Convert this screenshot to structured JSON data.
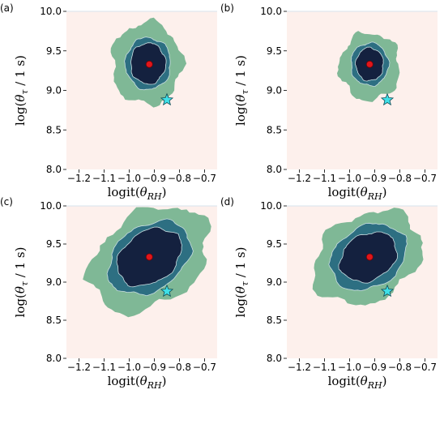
{
  "colors": {
    "background": "#fdf0ec",
    "level_outer": "#7fb896",
    "level_mid": "#2d6f82",
    "level_inner": "#14213f",
    "edge": "#d7e3ee",
    "posterior_mean": "#e0161b",
    "true_value": "#3fe0e8"
  },
  "icons": {
    "true_value_marker": "star-icon",
    "posterior_mean_marker": "circle-dot-icon"
  },
  "chart_data": [
    {
      "type": "contour",
      "panel_label": "(a)",
      "xlabel_main": "logit(",
      "xlabel_sub": "RH",
      "ylabel_main": "log(",
      "ylabel_sub": "τ",
      "ylabel_tail": " / 1 s)",
      "xlim": [
        -1.25,
        -0.65
      ],
      "ylim": [
        8.0,
        10.0
      ],
      "grid": false,
      "xticks": [
        "−1.2",
        "−1.1",
        "−1.0",
        "−0.9",
        "−0.8",
        "−0.7"
      ],
      "yticks": [
        "8.0",
        "8.5",
        "9.0",
        "9.5",
        "10.0"
      ],
      "posterior_mean": {
        "x": -0.92,
        "y": 9.33
      },
      "true_value": {
        "x": -0.85,
        "y": 8.88
      },
      "contours": [
        {
          "level": "outer",
          "cx": -0.93,
          "cy": 9.34,
          "rx": 0.14,
          "ry": 0.52,
          "rot": 0
        },
        {
          "level": "mid",
          "cx": -0.925,
          "cy": 9.34,
          "rx": 0.09,
          "ry": 0.33,
          "rot": 0
        },
        {
          "level": "inner",
          "cx": -0.925,
          "cy": 9.34,
          "rx": 0.07,
          "ry": 0.26,
          "rot": 0
        }
      ]
    },
    {
      "type": "contour",
      "panel_label": "(b)",
      "xlabel_main": "logit(",
      "xlabel_sub": "RH",
      "ylabel_main": "log(",
      "ylabel_sub": "τ",
      "ylabel_tail": " / 1 s)",
      "xlim": [
        -1.25,
        -0.65
      ],
      "ylim": [
        8.0,
        10.0
      ],
      "grid": false,
      "xticks": [
        "−1.2",
        "−1.1",
        "−1.0",
        "−0.9",
        "−0.8",
        "−0.7"
      ],
      "yticks": [
        "8.0",
        "8.5",
        "9.0",
        "9.5",
        "10.0"
      ],
      "posterior_mean": {
        "x": -0.92,
        "y": 9.33
      },
      "true_value": {
        "x": -0.85,
        "y": 8.88
      },
      "contours": [
        {
          "level": "outer",
          "cx": -0.92,
          "cy": 9.3,
          "rx": 0.12,
          "ry": 0.43,
          "rot": 0
        },
        {
          "level": "mid",
          "cx": -0.92,
          "cy": 9.33,
          "rx": 0.075,
          "ry": 0.27,
          "rot": 0
        },
        {
          "level": "inner",
          "cx": -0.92,
          "cy": 9.33,
          "rx": 0.055,
          "ry": 0.21,
          "rot": 0
        }
      ]
    },
    {
      "type": "contour",
      "panel_label": "(c)",
      "xlabel_main": "logit(",
      "xlabel_sub": "RH",
      "ylabel_main": "log(",
      "ylabel_sub": "τ",
      "ylabel_tail": " / 1 s)",
      "xlim": [
        -1.25,
        -0.65
      ],
      "ylim": [
        8.0,
        10.0
      ],
      "grid": false,
      "xticks": [
        "−1.2",
        "−1.1",
        "−1.0",
        "−0.9",
        "−0.8",
        "−0.7"
      ],
      "yticks": [
        "8.0",
        "8.5",
        "9.0",
        "9.5",
        "10.0"
      ],
      "posterior_mean": {
        "x": -0.92,
        "y": 9.33
      },
      "true_value": {
        "x": -0.85,
        "y": 8.88
      },
      "contours": [
        {
          "level": "outer",
          "cx": -0.92,
          "cy": 9.3,
          "rx": 0.26,
          "ry": 0.6,
          "rot": 35
        },
        {
          "level": "mid",
          "cx": -0.92,
          "cy": 9.32,
          "rx": 0.18,
          "ry": 0.42,
          "rot": 35
        },
        {
          "level": "inner",
          "cx": -0.92,
          "cy": 9.33,
          "rx": 0.14,
          "ry": 0.33,
          "rot": 35
        }
      ]
    },
    {
      "type": "contour",
      "panel_label": "(d)",
      "xlabel_main": "logit(",
      "xlabel_sub": "RH",
      "ylabel_main": "log(",
      "ylabel_sub": "τ",
      "ylabel_tail": " / 1 s)",
      "xlim": [
        -1.25,
        -0.65
      ],
      "ylim": [
        8.0,
        10.0
      ],
      "grid": false,
      "xticks": [
        "−1.2",
        "−1.1",
        "−1.0",
        "−0.9",
        "−0.8",
        "−0.7"
      ],
      "yticks": [
        "8.0",
        "8.5",
        "9.0",
        "9.5",
        "10.0"
      ],
      "posterior_mean": {
        "x": -0.92,
        "y": 9.33
      },
      "true_value": {
        "x": -0.85,
        "y": 8.88
      },
      "contours": [
        {
          "level": "outer",
          "cx": -0.93,
          "cy": 9.32,
          "rx": 0.23,
          "ry": 0.56,
          "rot": 30
        },
        {
          "level": "mid",
          "cx": -0.925,
          "cy": 9.33,
          "rx": 0.16,
          "ry": 0.4,
          "rot": 30
        },
        {
          "level": "inner",
          "cx": -0.925,
          "cy": 9.33,
          "rx": 0.12,
          "ry": 0.3,
          "rot": 30
        }
      ]
    }
  ]
}
